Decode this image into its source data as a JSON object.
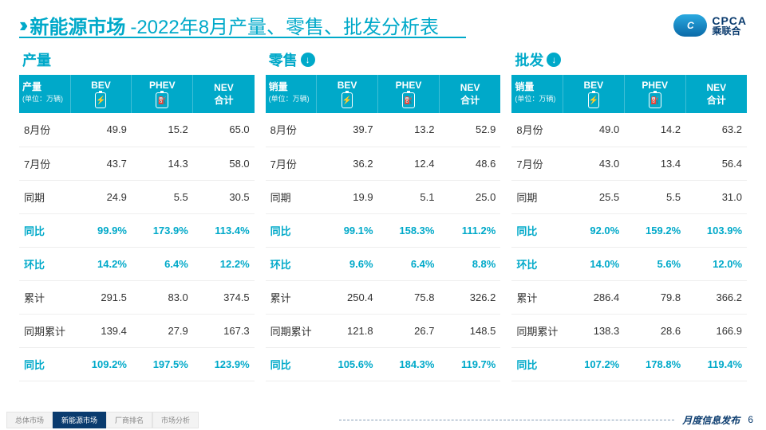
{
  "colors": {
    "accent": "#00a9c9",
    "navy": "#0a3b6e",
    "text": "#333333",
    "grid": "#eeeeee"
  },
  "header": {
    "title_main": "新能源市场",
    "title_sub": "-2022年8月产量、零售、批发分析表",
    "logo_en": "CPCA",
    "logo_cn": "乘联合"
  },
  "columns": {
    "bev": "BEV",
    "phev": "PHEV",
    "nev": "NEV\n合计"
  },
  "row_labels": [
    "8月份",
    "7月份",
    "同期",
    "同比",
    "环比",
    "累计",
    "同期累计",
    "同比"
  ],
  "highlight_rows": [
    3,
    4,
    7
  ],
  "panels": [
    {
      "title": "产量",
      "down_icon": false,
      "corner_label": "产量",
      "unit": "(单位：万辆)",
      "rows": [
        [
          "49.9",
          "15.2",
          "65.0"
        ],
        [
          "43.7",
          "14.3",
          "58.0"
        ],
        [
          "24.9",
          "5.5",
          "30.5"
        ],
        [
          "99.9%",
          "173.9%",
          "113.4%"
        ],
        [
          "14.2%",
          "6.4%",
          "12.2%"
        ],
        [
          "291.5",
          "83.0",
          "374.5"
        ],
        [
          "139.4",
          "27.9",
          "167.3"
        ],
        [
          "109.2%",
          "197.5%",
          "123.9%"
        ]
      ]
    },
    {
      "title": "零售",
      "down_icon": true,
      "corner_label": "销量",
      "unit": "(单位：万辆)",
      "rows": [
        [
          "39.7",
          "13.2",
          "52.9"
        ],
        [
          "36.2",
          "12.4",
          "48.6"
        ],
        [
          "19.9",
          "5.1",
          "25.0"
        ],
        [
          "99.1%",
          "158.3%",
          "111.2%"
        ],
        [
          "9.6%",
          "6.4%",
          "8.8%"
        ],
        [
          "250.4",
          "75.8",
          "326.2"
        ],
        [
          "121.8",
          "26.7",
          "148.5"
        ],
        [
          "105.6%",
          "184.3%",
          "119.7%"
        ]
      ]
    },
    {
      "title": "批发",
      "down_icon": true,
      "corner_label": "销量",
      "unit": "(单位：万辆)",
      "rows": [
        [
          "49.0",
          "14.2",
          "63.2"
        ],
        [
          "43.0",
          "13.4",
          "56.4"
        ],
        [
          "25.5",
          "5.5",
          "31.0"
        ],
        [
          "92.0%",
          "159.2%",
          "103.9%"
        ],
        [
          "14.0%",
          "5.6%",
          "12.0%"
        ],
        [
          "286.4",
          "79.8",
          "366.2"
        ],
        [
          "138.3",
          "28.6",
          "166.9"
        ],
        [
          "107.2%",
          "178.8%",
          "119.4%"
        ]
      ]
    }
  ],
  "footer": {
    "tabs": [
      "总体市场",
      "新能源市场",
      "厂商排名",
      "市场分析"
    ],
    "active_tab": 1,
    "label": "月度信息发布",
    "page": "6"
  }
}
